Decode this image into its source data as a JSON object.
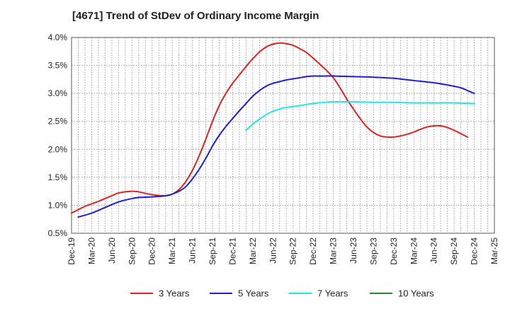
{
  "chart_data": {
    "type": "line",
    "title": "[4671]  Trend of StDev of Ordinary Income Margin",
    "xlabel": "",
    "ylabel": "",
    "ylim": [
      0.5,
      4.0
    ],
    "y_ticks": [
      "0.5%",
      "1.0%",
      "1.5%",
      "2.0%",
      "2.5%",
      "3.0%",
      "3.5%",
      "4.0%"
    ],
    "x_ticks": [
      "Dec-19",
      "Mar-20",
      "Jun-20",
      "Sep-20",
      "Dec-20",
      "Mar-21",
      "Jun-21",
      "Sep-21",
      "Dec-21",
      "Mar-22",
      "Jun-22",
      "Sep-22",
      "Dec-22",
      "Mar-23",
      "Jun-23",
      "Sep-23",
      "Dec-23",
      "Mar-24",
      "Jun-24",
      "Sep-24",
      "Dec-24",
      "Mar-25"
    ],
    "grid": true,
    "legend_position": "bottom",
    "series": [
      {
        "name": "3 Years",
        "color": "#dd2222",
        "points": [
          [
            "Dec-19",
            0.86
          ],
          [
            "Feb-20",
            0.98
          ],
          [
            "Apr-20",
            1.07
          ],
          [
            "Jun-20",
            1.17
          ],
          [
            "Jul-20",
            1.22
          ],
          [
            "Sep-20",
            1.25
          ],
          [
            "Oct-20",
            1.24
          ],
          [
            "Dec-20",
            1.19
          ],
          [
            "Feb-21",
            1.17
          ],
          [
            "Mar-21",
            1.2
          ],
          [
            "Apr-21",
            1.28
          ],
          [
            "May-21",
            1.42
          ],
          [
            "Jun-21",
            1.62
          ],
          [
            "Jul-21",
            1.88
          ],
          [
            "Aug-21",
            2.18
          ],
          [
            "Sep-21",
            2.5
          ],
          [
            "Oct-21",
            2.78
          ],
          [
            "Nov-21",
            3.0
          ],
          [
            "Dec-21",
            3.18
          ],
          [
            "Jan-22",
            3.33
          ],
          [
            "Feb-22",
            3.48
          ],
          [
            "Mar-22",
            3.62
          ],
          [
            "Apr-22",
            3.74
          ],
          [
            "May-22",
            3.83
          ],
          [
            "Jun-22",
            3.88
          ],
          [
            "Jul-22",
            3.9
          ],
          [
            "Aug-22",
            3.89
          ],
          [
            "Sep-22",
            3.86
          ],
          [
            "Oct-22",
            3.8
          ],
          [
            "Nov-22",
            3.73
          ],
          [
            "Dec-22",
            3.63
          ],
          [
            "Jan-23",
            3.52
          ],
          [
            "Feb-23",
            3.41
          ],
          [
            "Mar-23",
            3.28
          ],
          [
            "Apr-23",
            3.1
          ],
          [
            "May-23",
            2.9
          ],
          [
            "Jun-23",
            2.72
          ],
          [
            "Jul-23",
            2.55
          ],
          [
            "Aug-23",
            2.4
          ],
          [
            "Sep-23",
            2.3
          ],
          [
            "Oct-23",
            2.24
          ],
          [
            "Nov-23",
            2.22
          ],
          [
            "Dec-23",
            2.22
          ],
          [
            "Jan-24",
            2.24
          ],
          [
            "Feb-24",
            2.27
          ],
          [
            "Mar-24",
            2.31
          ],
          [
            "Apr-24",
            2.36
          ],
          [
            "May-24",
            2.4
          ],
          [
            "Jun-24",
            2.42
          ],
          [
            "Jul-24",
            2.42
          ],
          [
            "Aug-24",
            2.39
          ],
          [
            "Sep-24",
            2.34
          ],
          [
            "Oct-24",
            2.28
          ],
          [
            "Nov-24",
            2.22
          ]
        ]
      },
      {
        "name": "5 Years",
        "color": "#1f1fcc",
        "points": [
          [
            "Dec-19",
            null
          ],
          [
            "Jan-20",
            0.79
          ],
          [
            "Mar-20",
            0.86
          ],
          [
            "May-20",
            0.96
          ],
          [
            "Jul-20",
            1.06
          ],
          [
            "Sep-20",
            1.12
          ],
          [
            "Oct-20",
            1.14
          ],
          [
            "Dec-20",
            1.15
          ],
          [
            "Feb-21",
            1.17
          ],
          [
            "Mar-21",
            1.2
          ],
          [
            "Apr-21",
            1.25
          ],
          [
            "May-21",
            1.33
          ],
          [
            "Jun-21",
            1.47
          ],
          [
            "Jul-21",
            1.64
          ],
          [
            "Aug-21",
            1.84
          ],
          [
            "Sep-21",
            2.06
          ],
          [
            "Oct-21",
            2.25
          ],
          [
            "Nov-21",
            2.41
          ],
          [
            "Dec-21",
            2.55
          ],
          [
            "Jan-22",
            2.69
          ],
          [
            "Feb-22",
            2.82
          ],
          [
            "Mar-22",
            2.95
          ],
          [
            "Apr-22",
            3.05
          ],
          [
            "May-22",
            3.13
          ],
          [
            "Jun-22",
            3.18
          ],
          [
            "Jul-22",
            3.21
          ],
          [
            "Aug-22",
            3.24
          ],
          [
            "Sep-22",
            3.26
          ],
          [
            "Oct-22",
            3.28
          ],
          [
            "Nov-22",
            3.3
          ],
          [
            "Dec-22",
            3.31
          ],
          [
            "Jan-23",
            3.31
          ],
          [
            "Mar-23",
            3.31
          ],
          [
            "Jun-23",
            3.3
          ],
          [
            "Sep-23",
            3.29
          ],
          [
            "Dec-23",
            3.27
          ],
          [
            "Mar-24",
            3.23
          ],
          [
            "Jun-24",
            3.19
          ],
          [
            "Aug-24",
            3.15
          ],
          [
            "Oct-24",
            3.1
          ],
          [
            "Nov-24",
            3.05
          ],
          [
            "Dec-24",
            3.0
          ]
        ]
      },
      {
        "name": "7 Years",
        "color": "#22e5e5",
        "points": [
          [
            "Feb-22",
            2.34
          ],
          [
            "Mar-22",
            2.45
          ],
          [
            "Apr-22",
            2.54
          ],
          [
            "May-22",
            2.62
          ],
          [
            "Jun-22",
            2.68
          ],
          [
            "Jul-22",
            2.72
          ],
          [
            "Aug-22",
            2.75
          ],
          [
            "Oct-22",
            2.78
          ],
          [
            "Dec-22",
            2.82
          ],
          [
            "Mar-23",
            2.85
          ],
          [
            "Jun-23",
            2.85
          ],
          [
            "Sep-23",
            2.84
          ],
          [
            "Dec-23",
            2.84
          ],
          [
            "Mar-24",
            2.83
          ],
          [
            "Jun-24",
            2.83
          ],
          [
            "Sep-24",
            2.83
          ],
          [
            "Dec-24",
            2.82
          ]
        ]
      },
      {
        "name": "10 Years",
        "color": "#228b22",
        "points": []
      }
    ]
  }
}
